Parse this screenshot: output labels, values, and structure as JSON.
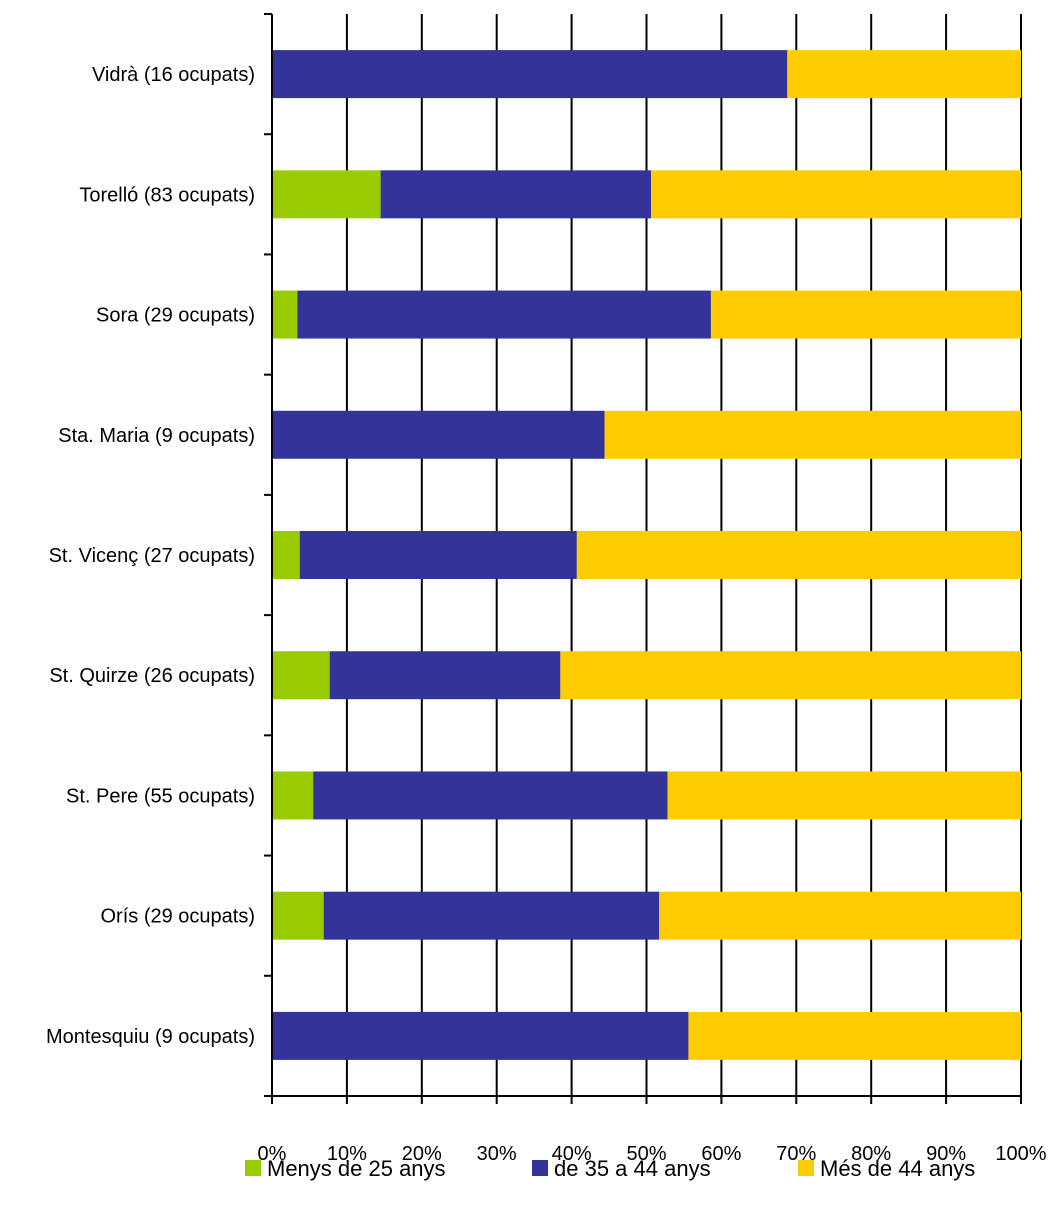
{
  "chart_data": {
    "type": "bar",
    "orientation": "horizontal",
    "stacked": "percent",
    "title": "",
    "xlabel": "",
    "ylabel": "",
    "xlim": [
      0,
      100
    ],
    "x_ticks": [
      "0%",
      "10%",
      "20%",
      "30%",
      "40%",
      "50%",
      "60%",
      "70%",
      "80%",
      "90%",
      "100%"
    ],
    "grid": "vertical",
    "legend_position": "bottom",
    "categories": [
      "Vidrà (16 ocupats)",
      "Torelló (83 ocupats)",
      "Sora (29 ocupats)",
      "Sta. Maria (9 ocupats)",
      "St. Vicenç (27 ocupats)",
      "St. Quirze (26 ocupats)",
      "St. Pere (55 ocupats)",
      "Orís (29 ocupats)",
      "Montesquiu (9 ocupats)"
    ],
    "series": [
      {
        "name": "Menys de 25 anys",
        "color": "#99cc00",
        "values": [
          0,
          14.5,
          3.4,
          0,
          3.7,
          7.7,
          5.5,
          6.9,
          0
        ]
      },
      {
        "name": "de 35 a 44 anys",
        "color": "#333399",
        "values": [
          68.8,
          36.1,
          55.2,
          44.4,
          37.0,
          30.8,
          47.3,
          44.8,
          55.6
        ]
      },
      {
        "name": "Més de 44 anys",
        "color": "#ffcc00",
        "values": [
          31.2,
          49.4,
          41.4,
          55.6,
          59.3,
          61.5,
          47.2,
          48.3,
          44.4
        ]
      }
    ]
  }
}
